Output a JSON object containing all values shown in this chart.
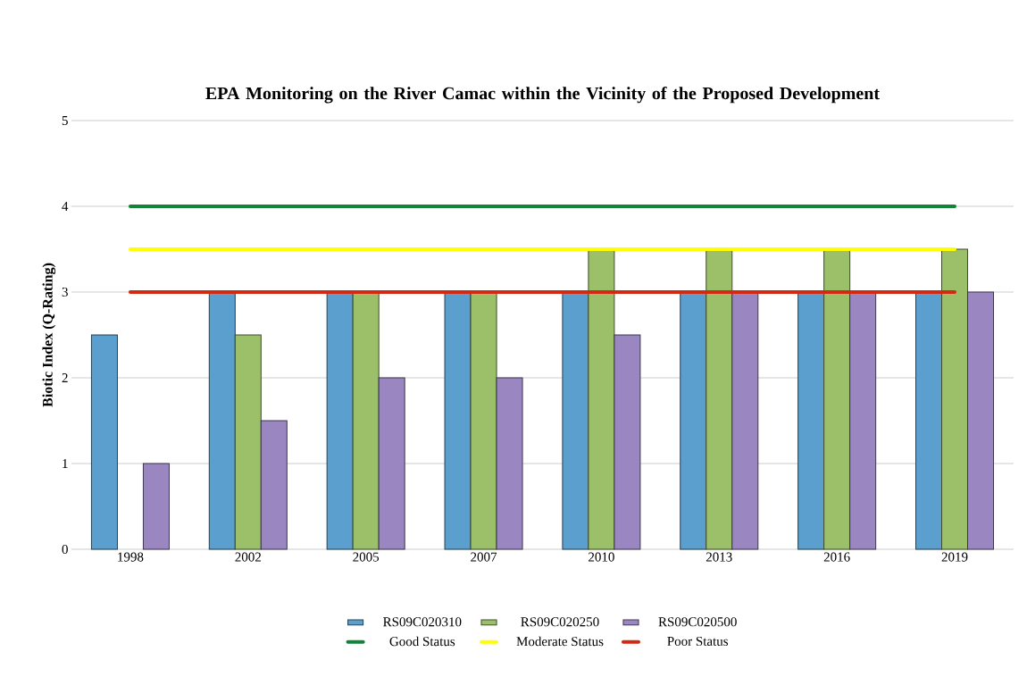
{
  "chart_data": {
    "type": "bar",
    "title": "EPA Monitoring on the River Camac within the Vicinity of the Proposed Development",
    "ylabel": "Biotic Index (Q-Rating)",
    "categories": [
      "1998",
      "2002",
      "2005",
      "2007",
      "2010",
      "2013",
      "2016",
      "2019"
    ],
    "series": [
      {
        "name": "RS09C020310",
        "color": "#5b9fcf",
        "values": [
          2.5,
          3,
          3,
          3,
          3,
          3,
          3,
          3
        ]
      },
      {
        "name": "RS09C020250",
        "color": "#9cc06a",
        "values": [
          null,
          2.5,
          3,
          3,
          3.5,
          3.5,
          3.5,
          3.5
        ]
      },
      {
        "name": "RS09C020500",
        "color": "#9a87c2",
        "values": [
          1,
          1.5,
          2,
          2,
          2.5,
          3,
          3,
          3
        ]
      },
      {
        "name": "Good Status",
        "type": "line",
        "color": "#12843a",
        "values": [
          4,
          4,
          4,
          4,
          4,
          4,
          4,
          4
        ]
      },
      {
        "name": "Moderate Status",
        "type": "line",
        "color": "#ffff00",
        "values": [
          3.5,
          3.5,
          3.5,
          3.5,
          3.5,
          3.5,
          3.5,
          3.5
        ]
      },
      {
        "name": "Poor Status",
        "type": "line",
        "color": "#d22a12",
        "values": [
          3,
          3,
          3,
          3,
          3,
          3,
          3,
          3
        ]
      }
    ],
    "ylim": [
      0,
      5
    ],
    "yticks": [
      0,
      1,
      2,
      3,
      4,
      5
    ],
    "grid": "y",
    "legend": "bottom"
  }
}
